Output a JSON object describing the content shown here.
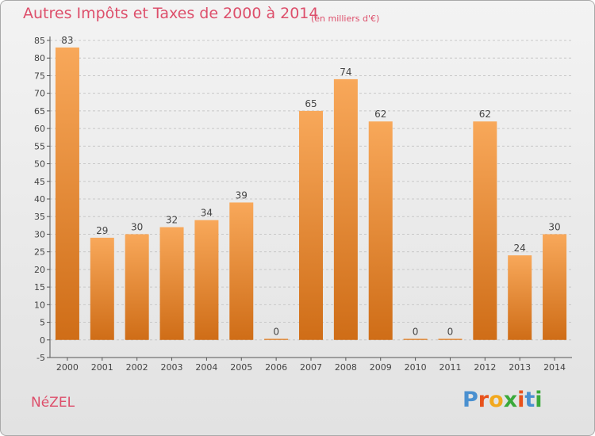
{
  "header": {
    "title": "Autres Impôts et Taxes de 2000 à 2014",
    "subtitle": "(en milliers d'€)"
  },
  "footer": {
    "commune": "NéZEL",
    "logo_letters": [
      "P",
      "r",
      "o",
      "x",
      "i",
      "t",
      "i"
    ],
    "logo_colors": [
      "#4a90d0",
      "#e8521c",
      "#f2a81d",
      "#3aa93a",
      "#e8521c",
      "#4a90d0",
      "#3aa93a"
    ]
  },
  "chart_data": {
    "type": "bar",
    "categories": [
      "2000",
      "2001",
      "2002",
      "2003",
      "2004",
      "2005",
      "2006",
      "2007",
      "2008",
      "2009",
      "2010",
      "2011",
      "2012",
      "2013",
      "2014"
    ],
    "values": [
      83,
      29,
      30,
      32,
      34,
      39,
      0,
      65,
      74,
      62,
      0,
      0,
      62,
      24,
      30
    ],
    "data_labels": [
      "83",
      "29",
      "30",
      "32",
      "34",
      "39",
      "0",
      "65",
      "74",
      "62",
      "0",
      "0",
      "62",
      "24",
      "30"
    ],
    "ylim": [
      -5,
      85
    ],
    "yticks": [
      -5,
      0,
      5,
      10,
      15,
      20,
      25,
      30,
      35,
      40,
      45,
      50,
      55,
      60,
      65,
      70,
      75,
      80,
      85
    ],
    "grid": true,
    "bar_color_top": "#f8a85a",
    "bar_color_bottom": "#cf6d17"
  }
}
